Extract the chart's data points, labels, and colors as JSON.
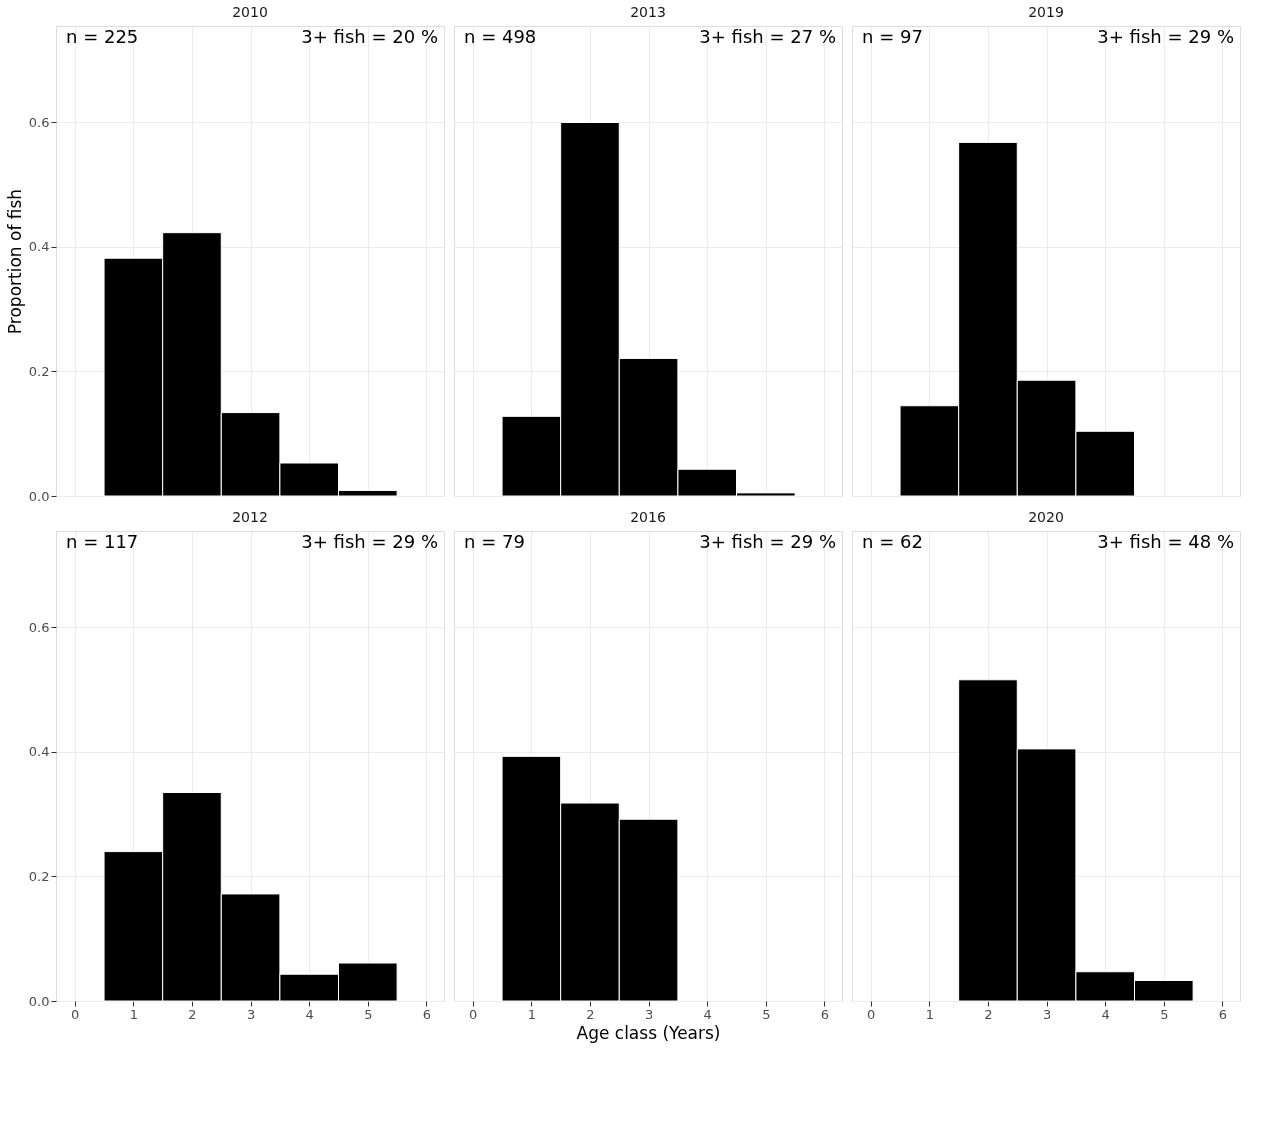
{
  "chart_data": [
    {
      "type": "histogram",
      "title": "2010",
      "ylabel": "Proportion of fish",
      "bins": [
        0.5,
        1.5,
        2.5,
        3.5,
        4.5,
        5.5
      ],
      "values": [
        0.382,
        0.423,
        0.134,
        0.053,
        0.009
      ],
      "color": "#000000",
      "xlim": [
        -0.32,
        6.3
      ],
      "xticks": [
        0,
        1,
        2,
        3,
        4,
        5,
        6
      ],
      "ylim": [
        0,
        0.755
      ],
      "yticks": [
        {
          "value": 0,
          "label": "0.0"
        },
        0.2,
        0.4,
        0.6
      ],
      "grid": true,
      "tick_labels": "y",
      "annotations": [
        "n = 225",
        "3+ fish = 20 %"
      ]
    },
    {
      "type": "histogram",
      "title": "2013",
      "bins": [
        0.5,
        1.5,
        2.5,
        3.5,
        4.5,
        5.5
      ],
      "values": [
        0.128,
        0.6,
        0.221,
        0.043,
        0.005
      ],
      "color": "#000000",
      "xlim": [
        -0.32,
        6.3
      ],
      "xticks": [
        0,
        1,
        2,
        3,
        4,
        5,
        6
      ],
      "ylim": [
        0,
        0.755
      ],
      "yticks": [
        0,
        0.2,
        0.4,
        0.6
      ],
      "grid": true,
      "tick_labels": false,
      "annotations": [
        "n = 498",
        "3+ fish = 27 %"
      ]
    },
    {
      "type": "histogram",
      "title": "2019",
      "bins": [
        0.5,
        1.5,
        2.5,
        3.5,
        4.5
      ],
      "values": [
        0.145,
        0.568,
        0.186,
        0.104
      ],
      "color": "#000000",
      "xlim": [
        -0.32,
        6.3
      ],
      "xticks": [
        0,
        1,
        2,
        3,
        4,
        5,
        6
      ],
      "ylim": [
        0,
        0.755
      ],
      "yticks": [
        0,
        0.2,
        0.4,
        0.6
      ],
      "grid": true,
      "tick_labels": false,
      "annotations": [
        "n = 97",
        "3+ fish = 29 %"
      ]
    },
    {
      "type": "histogram",
      "title": "2012",
      "bins": [
        0.5,
        1.5,
        2.5,
        3.5,
        4.5,
        5.5
      ],
      "values": [
        0.24,
        0.335,
        0.172,
        0.043,
        0.061
      ],
      "color": "#000000",
      "xlim": [
        -0.32,
        6.3
      ],
      "xticks": [
        0,
        1,
        2,
        3,
        4,
        5,
        6
      ],
      "ylim": [
        0,
        0.755
      ],
      "yticks": [
        {
          "value": 0,
          "label": "0.0"
        },
        0.2,
        0.4,
        0.6
      ],
      "grid": true,
      "annotations": [
        "n = 117",
        "3+ fish = 29 %"
      ]
    },
    {
      "type": "histogram",
      "title": "2016",
      "xlabel": "Age class (Years)",
      "bins": [
        0.5,
        1.5,
        2.5,
        3.5
      ],
      "values": [
        0.393,
        0.318,
        0.292
      ],
      "color": "#000000",
      "xlim": [
        -0.32,
        6.3
      ],
      "xticks": [
        0,
        1,
        2,
        3,
        4,
        5,
        6
      ],
      "ylim": [
        0,
        0.755
      ],
      "yticks": [
        0,
        0.2,
        0.4,
        0.6
      ],
      "grid": true,
      "tick_labels": "x",
      "annotations": [
        "n = 79",
        "3+ fish = 29 %"
      ]
    },
    {
      "type": "histogram",
      "title": "2020",
      "bins": [
        1.5,
        2.5,
        3.5,
        4.5,
        5.5
      ],
      "values": [
        0.516,
        0.405,
        0.047,
        0.033
      ],
      "color": "#000000",
      "xlim": [
        -0.32,
        6.3
      ],
      "xticks": [
        0,
        1,
        2,
        3,
        4,
        5,
        6
      ],
      "ylim": [
        0,
        0.755
      ],
      "yticks": [
        0,
        0.2,
        0.4,
        0.6
      ],
      "grid": true,
      "tick_labels": "x",
      "annotations": [
        "n = 62",
        "3+ fish = 48 %"
      ]
    }
  ]
}
